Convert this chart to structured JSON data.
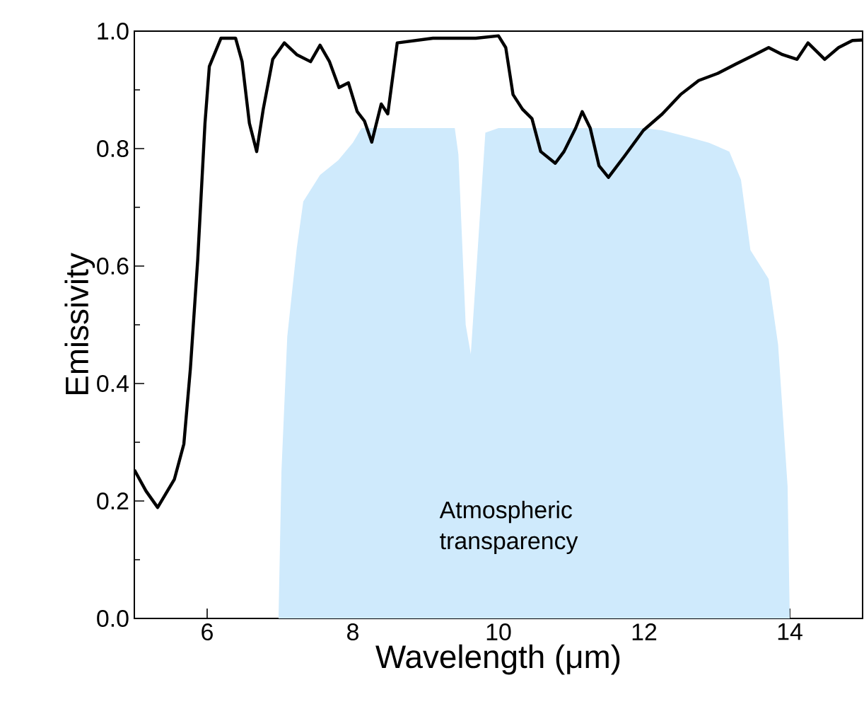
{
  "chart_data": {
    "type": "line",
    "xlabel": "Wavelength (μm)",
    "ylabel": "Emissivity",
    "xlim": [
      5,
      15
    ],
    "ylim": [
      0,
      1.0
    ],
    "xticks": [
      {
        "value": 5,
        "label": null
      },
      6,
      {
        "value": 7,
        "label": null
      },
      8,
      {
        "value": 9,
        "label": null
      },
      10,
      {
        "value": 11,
        "label": null
      },
      12,
      {
        "value": 13,
        "label": null
      },
      14,
      {
        "value": 15,
        "label": null
      }
    ],
    "yticks": [
      {
        "value": 0,
        "label": "0.0"
      },
      {
        "value": 0.1,
        "label": null
      },
      0.2,
      {
        "value": 0.3,
        "label": null
      },
      0.4,
      {
        "value": 0.5,
        "label": null
      },
      0.6,
      {
        "value": 0.7,
        "label": null
      },
      0.8,
      {
        "value": 0.9,
        "label": null
      },
      {
        "value": 1.0,
        "label": "1.0"
      }
    ],
    "series": [
      {
        "type": "area",
        "color": "#cfeafc",
        "x": [
          6.98,
          7.02,
          7.1,
          7.23,
          7.32,
          7.55,
          7.8,
          8.0,
          8.12,
          8.5,
          9.0,
          9.4,
          9.45,
          9.55,
          9.62,
          9.7,
          9.82,
          10.0,
          10.5,
          11.0,
          11.5,
          12.0,
          12.25,
          12.6,
          12.89,
          13.17,
          13.33,
          13.46,
          13.71,
          13.84,
          13.97,
          14.0
        ],
        "values": [
          0,
          0.25,
          0.48,
          0.63,
          0.71,
          0.755,
          0.78,
          0.81,
          0.835,
          0.835,
          0.835,
          0.835,
          0.79,
          0.5,
          0.45,
          0.6,
          0.827,
          0.835,
          0.835,
          0.835,
          0.835,
          0.835,
          0.831,
          0.82,
          0.81,
          0.795,
          0.747,
          0.627,
          0.578,
          0.466,
          0.225,
          0
        ]
      },
      {
        "color": "#000000",
        "x": [
          5.0,
          5.16,
          5.32,
          5.55,
          5.68,
          5.77,
          5.87,
          5.97,
          6.03,
          6.19,
          6.39,
          6.48,
          6.58,
          6.68,
          6.77,
          6.9,
          7.06,
          7.23,
          7.42,
          7.55,
          7.68,
          7.81,
          7.94,
          8.06,
          8.16,
          8.26,
          8.39,
          8.48,
          8.61,
          9.1,
          9.69,
          10.0,
          10.1,
          10.2,
          10.33,
          10.46,
          10.58,
          10.78,
          10.9,
          11.06,
          11.15,
          11.26,
          11.38,
          11.51,
          11.73,
          11.99,
          12.25,
          12.5,
          12.75,
          13.01,
          13.26,
          13.52,
          13.71,
          13.9,
          14.1,
          14.25,
          14.48,
          14.67,
          14.86,
          15.0
        ],
        "values": [
          0.253,
          0.217,
          0.189,
          0.237,
          0.297,
          0.426,
          0.61,
          0.843,
          0.94,
          0.988,
          0.988,
          0.948,
          0.843,
          0.795,
          0.867,
          0.952,
          0.98,
          0.96,
          0.948,
          0.976,
          0.948,
          0.904,
          0.912,
          0.863,
          0.847,
          0.811,
          0.876,
          0.859,
          0.98,
          0.988,
          0.988,
          0.992,
          0.972,
          0.892,
          0.867,
          0.851,
          0.795,
          0.775,
          0.795,
          0.835,
          0.863,
          0.835,
          0.771,
          0.751,
          0.787,
          0.831,
          0.859,
          0.892,
          0.916,
          0.928,
          0.944,
          0.96,
          0.972,
          0.96,
          0.952,
          0.98,
          0.952,
          0.972,
          0.984,
          0.985
        ]
      }
    ],
    "annotations": [
      "Atmospheric transparency"
    ]
  }
}
